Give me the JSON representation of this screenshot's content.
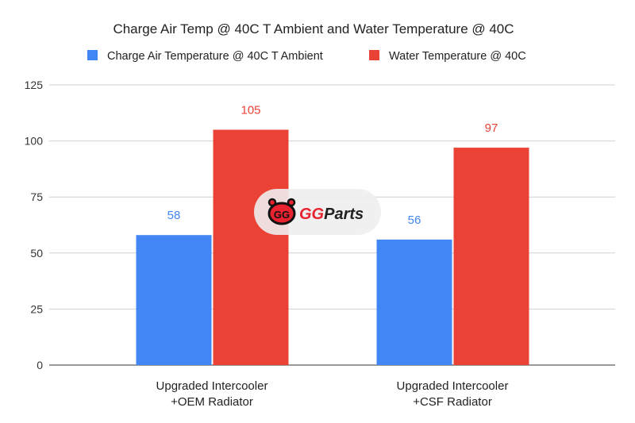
{
  "chart_data": {
    "type": "bar",
    "title": "Charge Air Temp @ 40C T Ambient and Water Temperature @ 40C",
    "categories": [
      [
        "Upgraded Intercooler",
        "+OEM Radiator"
      ],
      [
        "Upgraded Intercooler",
        "+CSF Radiator"
      ]
    ],
    "series": [
      {
        "name": "Charge Air Temperature @ 40C T Ambient",
        "values": [
          58,
          56
        ],
        "color": "#4285f4"
      },
      {
        "name": "Water Temperature @ 40C",
        "values": [
          105,
          97
        ],
        "color": "#ea4335"
      }
    ],
    "ylim": [
      0,
      125
    ],
    "yticks": [
      0,
      25,
      50,
      75,
      100,
      125
    ],
    "grid": true,
    "legend": "top",
    "data_labels": true
  },
  "watermark": {
    "text": "GGParts"
  }
}
